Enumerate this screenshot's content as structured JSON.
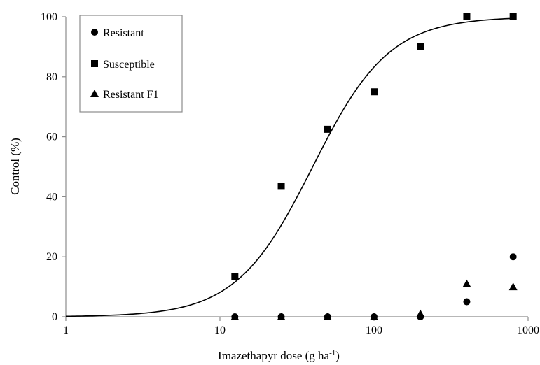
{
  "chart_data": {
    "type": "scatter",
    "title": "",
    "xlabel": "Imazethapyr  dose (g ha",
    "xlabel_superscript": "-1",
    "xlabel_suffix": ")",
    "ylabel": "Control (%)",
    "xscale": "log",
    "xlim": [
      1,
      1000
    ],
    "ylim": [
      0,
      100
    ],
    "xticks": [
      "1",
      "10",
      "100",
      "1000"
    ],
    "yticks": [
      "0",
      "20",
      "40",
      "60",
      "80",
      "100"
    ],
    "grid": false,
    "legend_placement": "top-left",
    "series": [
      {
        "name": "Resistant",
        "marker": "circle",
        "x": [
          12.5,
          25,
          50,
          100,
          200,
          400,
          800
        ],
        "y": [
          0,
          0,
          0,
          0,
          0,
          5,
          20
        ]
      },
      {
        "name": "Susceptible",
        "marker": "square",
        "x": [
          12.5,
          25,
          50,
          100,
          200,
          400,
          800
        ],
        "y": [
          13.5,
          43.5,
          62.5,
          75,
          90,
          100,
          100
        ]
      },
      {
        "name": "Resistant F1",
        "marker": "triangle",
        "x": [
          12.5,
          25,
          50,
          100,
          200,
          400,
          800
        ],
        "y": [
          0,
          0,
          0,
          0,
          1,
          11,
          10
        ]
      }
    ],
    "fit_curve": {
      "model": "log-logistic",
      "lower": 0,
      "upper": 100,
      "ed50": 40,
      "slope": 1.75,
      "x_range": [
        1,
        800
      ]
    },
    "colors": {
      "marks": "#000000",
      "axes": "#8c8c8c",
      "legend_border": "#8c8c8c"
    }
  }
}
